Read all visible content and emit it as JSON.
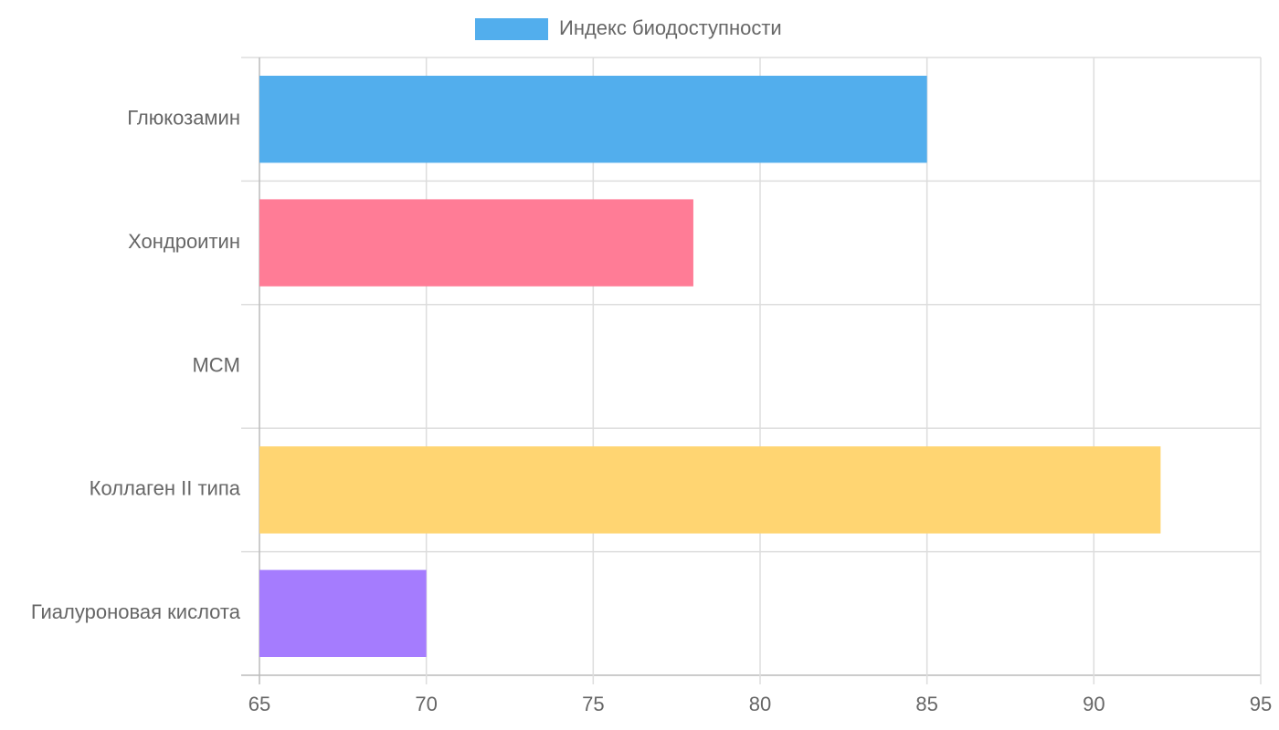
{
  "chart_data": {
    "type": "hbar",
    "categories": [
      "Глюкозамин",
      "Хондроитин",
      "MCM",
      "Коллаген II типа",
      "Гиалуроновая кислота"
    ],
    "series": [
      {
        "name": "Индекс биодоступности",
        "color": [
          "#52aeed",
          "#ff7c96",
          "#4bc0c0",
          "#ffd572",
          "#a57cfe"
        ],
        "values": [
          85,
          78,
          65,
          92,
          70
        ]
      }
    ],
    "xlim": [
      65,
      95
    ],
    "xticks": [
      65,
      70,
      75,
      80,
      85,
      90,
      95
    ],
    "grid": true
  }
}
